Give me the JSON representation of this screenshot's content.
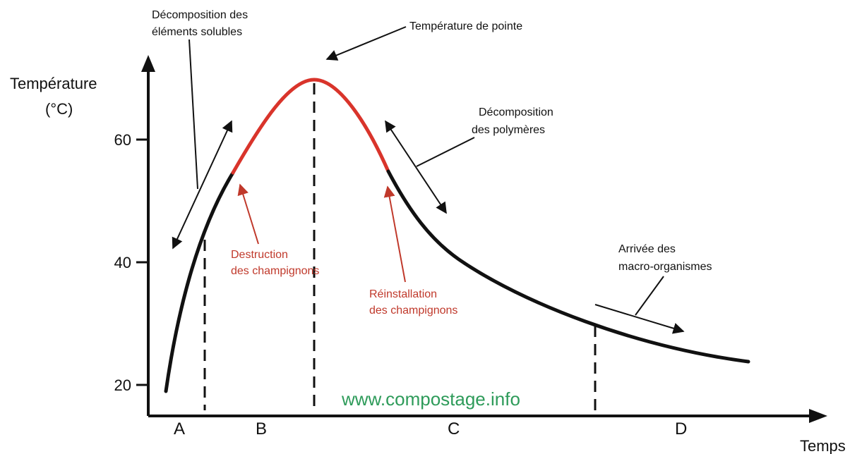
{
  "axis": {
    "y_label_1": "Température",
    "y_label_2": "(°C)",
    "y_ticks": [
      "60",
      "40",
      "20"
    ],
    "x_label": "Temps"
  },
  "phases": [
    "A",
    "B",
    "C",
    "D"
  ],
  "annotations": {
    "soluble": [
      "Décomposition des",
      "éléments solubles"
    ],
    "peak": "Température de pointe",
    "polymers": [
      "Décomposition",
      "des polymères"
    ],
    "destruction": [
      "Destruction",
      "des champignons"
    ],
    "reinstall": [
      "Réinstallation",
      "des champignons"
    ],
    "macro": [
      "Arrivée des",
      "macro-organismes"
    ]
  },
  "watermark": "www.compostage.info"
}
